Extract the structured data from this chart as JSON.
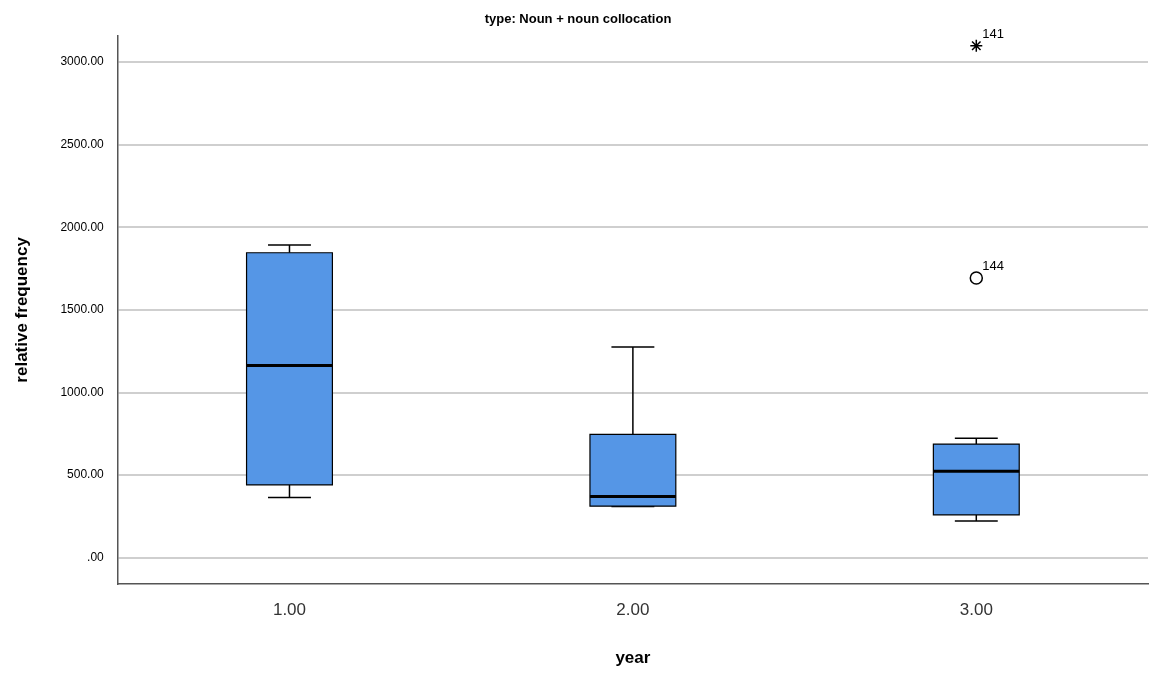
{
  "chart_data": {
    "type": "box",
    "title": "type: Noun + noun collocation",
    "xlabel": "year",
    "ylabel": "relative frequency",
    "categories": [
      "1.00",
      "2.00",
      "3.00"
    ],
    "color": "#5596e6",
    "boxes": [
      {
        "low": 365,
        "q1": 441,
        "median": 1164,
        "q3": 1846,
        "high": 1893
      },
      {
        "low": 310,
        "q1": 312,
        "median": 370,
        "q3": 747,
        "high": 1276
      },
      {
        "low": 223,
        "q1": 259,
        "median": 523,
        "q3": 688,
        "high": 723
      }
    ],
    "series": [
      {
        "type": "scatter",
        "x": [
          "3.00"
        ],
        "values": [
          3099
        ],
        "marker": "cross",
        "color": "#000000"
      },
      {
        "type": "scatter",
        "x": [
          "3.00"
        ],
        "values": [
          1693
        ],
        "marker": "circle",
        "color": "#000000"
      }
    ],
    "annotations": [
      {
        "text": "141",
        "x": "3.00",
        "y": 3099
      },
      {
        "text": "144",
        "x": "3.00",
        "y": 1693
      }
    ],
    "ylim": [
      -160,
      3160
    ],
    "yticks": [
      {
        "value": 0,
        "label": ".00"
      },
      {
        "value": 500,
        "label": "500.00"
      },
      {
        "value": 1000,
        "label": "1000.00"
      },
      {
        "value": 1500,
        "label": "1500.00"
      },
      {
        "value": 2000,
        "label": "2000.00"
      },
      {
        "value": 2500,
        "label": "2500.00"
      },
      {
        "value": 3000,
        "label": "3000.00"
      }
    ],
    "grid": "y",
    "legend": false
  }
}
